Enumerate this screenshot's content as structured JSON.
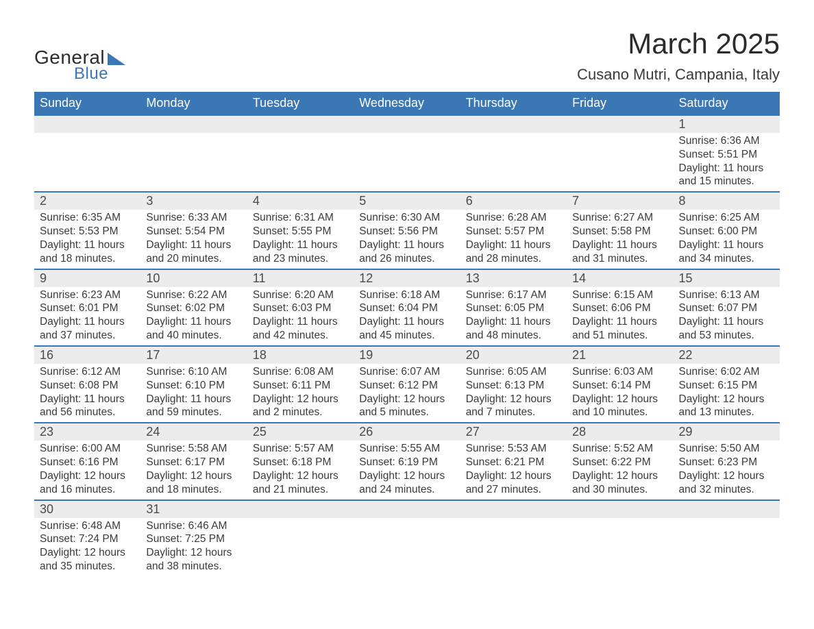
{
  "logo": {
    "line1": "General",
    "line2": "Blue"
  },
  "title": "March 2025",
  "location": "Cusano Mutri, Campania, Italy",
  "colors": {
    "header_bg": "#3b76b5",
    "header_text": "#ffffff",
    "daynum_bg": "#ececec",
    "text": "#3a3a3a",
    "row_border": "#3b76b5",
    "page_bg": "#ffffff",
    "logo_accent": "#3b76b5"
  },
  "typography": {
    "title_fontsize": 42,
    "location_fontsize": 22,
    "weekday_fontsize": 18,
    "daynum_fontsize": 18,
    "details_fontsize": 15.5,
    "font_family": "Arial"
  },
  "layout": {
    "columns": 7,
    "start_weekday": "Sunday",
    "leading_blanks": 6,
    "trailing_blanks": 5
  },
  "weekdays": [
    "Sunday",
    "Monday",
    "Tuesday",
    "Wednesday",
    "Thursday",
    "Friday",
    "Saturday"
  ],
  "days": [
    {
      "n": 1,
      "sunrise": "6:36 AM",
      "sunset": "5:51 PM",
      "daylight": "11 hours and 15 minutes."
    },
    {
      "n": 2,
      "sunrise": "6:35 AM",
      "sunset": "5:53 PM",
      "daylight": "11 hours and 18 minutes."
    },
    {
      "n": 3,
      "sunrise": "6:33 AM",
      "sunset": "5:54 PM",
      "daylight": "11 hours and 20 minutes."
    },
    {
      "n": 4,
      "sunrise": "6:31 AM",
      "sunset": "5:55 PM",
      "daylight": "11 hours and 23 minutes."
    },
    {
      "n": 5,
      "sunrise": "6:30 AM",
      "sunset": "5:56 PM",
      "daylight": "11 hours and 26 minutes."
    },
    {
      "n": 6,
      "sunrise": "6:28 AM",
      "sunset": "5:57 PM",
      "daylight": "11 hours and 28 minutes."
    },
    {
      "n": 7,
      "sunrise": "6:27 AM",
      "sunset": "5:58 PM",
      "daylight": "11 hours and 31 minutes."
    },
    {
      "n": 8,
      "sunrise": "6:25 AM",
      "sunset": "6:00 PM",
      "daylight": "11 hours and 34 minutes."
    },
    {
      "n": 9,
      "sunrise": "6:23 AM",
      "sunset": "6:01 PM",
      "daylight": "11 hours and 37 minutes."
    },
    {
      "n": 10,
      "sunrise": "6:22 AM",
      "sunset": "6:02 PM",
      "daylight": "11 hours and 40 minutes."
    },
    {
      "n": 11,
      "sunrise": "6:20 AM",
      "sunset": "6:03 PM",
      "daylight": "11 hours and 42 minutes."
    },
    {
      "n": 12,
      "sunrise": "6:18 AM",
      "sunset": "6:04 PM",
      "daylight": "11 hours and 45 minutes."
    },
    {
      "n": 13,
      "sunrise": "6:17 AM",
      "sunset": "6:05 PM",
      "daylight": "11 hours and 48 minutes."
    },
    {
      "n": 14,
      "sunrise": "6:15 AM",
      "sunset": "6:06 PM",
      "daylight": "11 hours and 51 minutes."
    },
    {
      "n": 15,
      "sunrise": "6:13 AM",
      "sunset": "6:07 PM",
      "daylight": "11 hours and 53 minutes."
    },
    {
      "n": 16,
      "sunrise": "6:12 AM",
      "sunset": "6:08 PM",
      "daylight": "11 hours and 56 minutes."
    },
    {
      "n": 17,
      "sunrise": "6:10 AM",
      "sunset": "6:10 PM",
      "daylight": "11 hours and 59 minutes."
    },
    {
      "n": 18,
      "sunrise": "6:08 AM",
      "sunset": "6:11 PM",
      "daylight": "12 hours and 2 minutes."
    },
    {
      "n": 19,
      "sunrise": "6:07 AM",
      "sunset": "6:12 PM",
      "daylight": "12 hours and 5 minutes."
    },
    {
      "n": 20,
      "sunrise": "6:05 AM",
      "sunset": "6:13 PM",
      "daylight": "12 hours and 7 minutes."
    },
    {
      "n": 21,
      "sunrise": "6:03 AM",
      "sunset": "6:14 PM",
      "daylight": "12 hours and 10 minutes."
    },
    {
      "n": 22,
      "sunrise": "6:02 AM",
      "sunset": "6:15 PM",
      "daylight": "12 hours and 13 minutes."
    },
    {
      "n": 23,
      "sunrise": "6:00 AM",
      "sunset": "6:16 PM",
      "daylight": "12 hours and 16 minutes."
    },
    {
      "n": 24,
      "sunrise": "5:58 AM",
      "sunset": "6:17 PM",
      "daylight": "12 hours and 18 minutes."
    },
    {
      "n": 25,
      "sunrise": "5:57 AM",
      "sunset": "6:18 PM",
      "daylight": "12 hours and 21 minutes."
    },
    {
      "n": 26,
      "sunrise": "5:55 AM",
      "sunset": "6:19 PM",
      "daylight": "12 hours and 24 minutes."
    },
    {
      "n": 27,
      "sunrise": "5:53 AM",
      "sunset": "6:21 PM",
      "daylight": "12 hours and 27 minutes."
    },
    {
      "n": 28,
      "sunrise": "5:52 AM",
      "sunset": "6:22 PM",
      "daylight": "12 hours and 30 minutes."
    },
    {
      "n": 29,
      "sunrise": "5:50 AM",
      "sunset": "6:23 PM",
      "daylight": "12 hours and 32 minutes."
    },
    {
      "n": 30,
      "sunrise": "6:48 AM",
      "sunset": "7:24 PM",
      "daylight": "12 hours and 35 minutes."
    },
    {
      "n": 31,
      "sunrise": "6:46 AM",
      "sunset": "7:25 PM",
      "daylight": "12 hours and 38 minutes."
    }
  ],
  "labels": {
    "sunrise": "Sunrise:",
    "sunset": "Sunset:",
    "daylight": "Daylight:"
  }
}
